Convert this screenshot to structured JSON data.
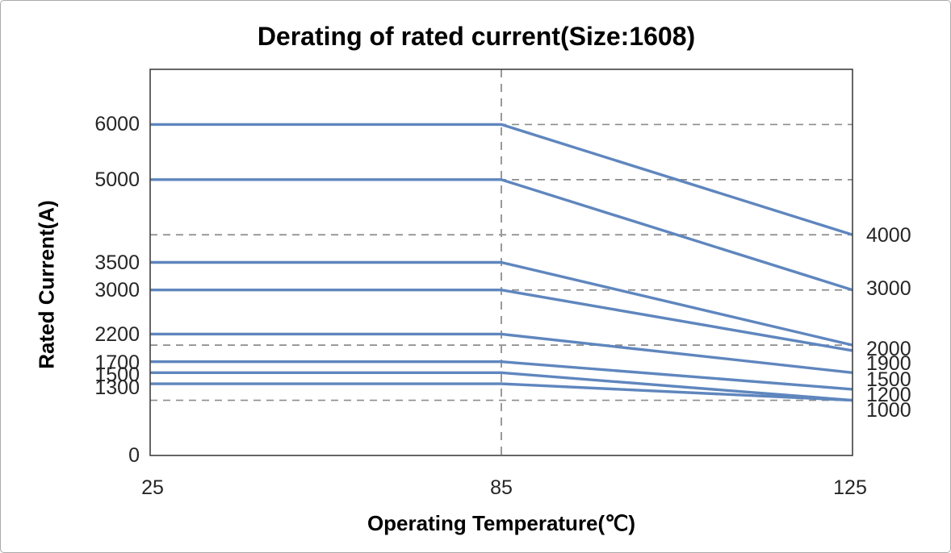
{
  "chart_data": {
    "type": "line",
    "title": "Derating of rated current(Size:1608)",
    "xlabel": "Operating Temperature(℃)",
    "ylabel": "Rated Current(A)",
    "x": [
      25,
      85,
      125
    ],
    "x_tick_labels": [
      "25",
      "85",
      "125"
    ],
    "ylim": [
      0,
      7000
    ],
    "series": [
      {
        "name": "6000",
        "values": [
          6000,
          6000,
          4000
        ]
      },
      {
        "name": "5000",
        "values": [
          5000,
          5000,
          3000
        ]
      },
      {
        "name": "3500",
        "values": [
          3500,
          3500,
          2000
        ]
      },
      {
        "name": "3000",
        "values": [
          3000,
          3000,
          1900
        ]
      },
      {
        "name": "2200",
        "values": [
          2200,
          2200,
          1500
        ]
      },
      {
        "name": "1700",
        "values": [
          1700,
          1700,
          1200
        ]
      },
      {
        "name": "1500",
        "values": [
          1500,
          1500,
          1000
        ]
      },
      {
        "name": "1300",
        "values": [
          1300,
          1300,
          1000
        ]
      }
    ],
    "left_tick_labels": [
      "6000",
      "5000",
      "3500",
      "3000",
      "2200",
      "1700",
      "1500",
      "1300",
      "0"
    ],
    "right_tick_labels": [
      "4000",
      "3000",
      "2000",
      "1900",
      "1500",
      "1200",
      "1000"
    ],
    "gridlines_y": [
      6000,
      5000,
      4000,
      3000,
      2000,
      1000
    ],
    "vertical_gridline_x": 85,
    "grid": true,
    "legend": "none",
    "colors": {
      "line": "#5f86be",
      "grid": "#8c8c8c",
      "vgrid": "#999999",
      "border": "#404040",
      "text": "#262626"
    }
  }
}
